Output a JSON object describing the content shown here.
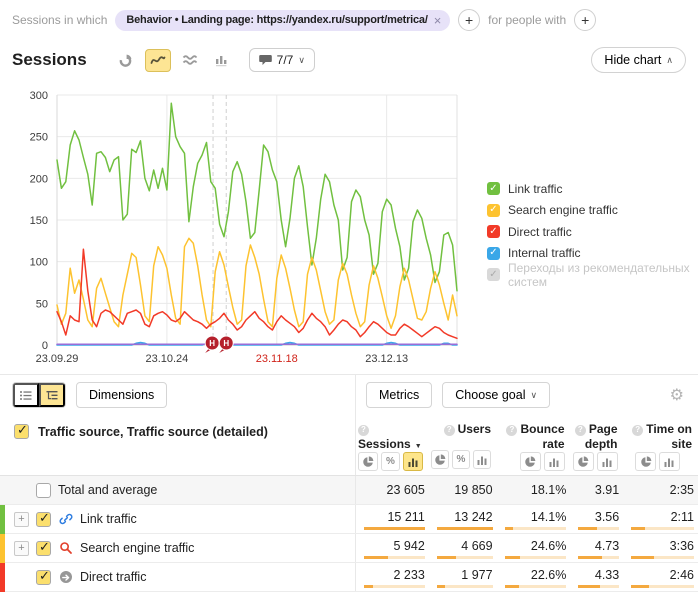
{
  "filter_bar": {
    "label": "Sessions in which",
    "chip_text": "Behavior • Landing page: https://yandex.ru/support/metrica/",
    "for_people_with": "for people with"
  },
  "chart_header": {
    "title": "Sessions",
    "comments_count": "7/7",
    "hide_chart_label": "Hide chart"
  },
  "legend": [
    {
      "label": "Link traffic",
      "color": "#71c040",
      "enabled": true
    },
    {
      "label": "Search engine traffic",
      "color": "#fdc330",
      "enabled": true
    },
    {
      "label": "Direct traffic",
      "color": "#f23a28",
      "enabled": true
    },
    {
      "label": "Internal traffic",
      "color": "#3aa7e8",
      "enabled": true
    },
    {
      "label": "Переходы из рекомендательных систем",
      "color": "#d9d9d9",
      "enabled": false
    }
  ],
  "chart_data": {
    "type": "line",
    "title": "Sessions",
    "ylim": [
      0,
      300
    ],
    "yticks": [
      0,
      50,
      100,
      150,
      200,
      250,
      300
    ],
    "days_total": 91,
    "x_ticks": [
      {
        "label": "23.09.29",
        "day": 0,
        "highlight": false
      },
      {
        "label": "23.10.24",
        "day": 25,
        "highlight": false
      },
      {
        "label": "23.11.18",
        "day": 50,
        "highlight": true
      },
      {
        "label": "23.12.13",
        "day": 75,
        "highlight": false
      }
    ],
    "dashed_marker_days": [
      35.5,
      38.5
    ],
    "annotations": [
      {
        "label": "H",
        "day": 35.3
      },
      {
        "label": "H",
        "day": 38.5
      }
    ],
    "series": [
      {
        "name": "Link traffic",
        "color": "#71c040",
        "values": [
          222,
          188,
          196,
          240,
          257,
          246,
          225,
          205,
          168,
          230,
          232,
          225,
          208,
          222,
          226,
          150,
          157,
          235,
          231,
          245,
          200,
          185,
          210,
          188,
          212,
          186,
          290,
          250,
          238,
          230,
          148,
          190,
          218,
          228,
          243,
          196,
          188,
          145,
          130,
          160,
          208,
          220,
          205,
          172,
          128,
          135,
          186,
          240,
          232,
          210,
          196,
          150,
          118,
          152,
          200,
          215,
          190,
          142,
          96,
          128,
          175,
          205,
          196,
          168,
          150,
          90,
          105,
          172,
          186,
          178,
          150,
          132,
          85,
          98,
          160,
          175,
          168,
          140,
          118,
          78,
          92,
          148,
          162,
          152,
          128,
          108,
          75,
          88,
          132,
          135,
          120,
          65
        ]
      },
      {
        "name": "Search engine traffic",
        "color": "#fdc330",
        "values": [
          48,
          25,
          38,
          92,
          62,
          78,
          55,
          30,
          22,
          68,
          80,
          62,
          45,
          28,
          22,
          60,
          85,
          110,
          105,
          72,
          35,
          28,
          95,
          118,
          108,
          92,
          60,
          32,
          25,
          118,
          128,
          122,
          95,
          60,
          30,
          22,
          88,
          112,
          96,
          70,
          45,
          25,
          30,
          95,
          120,
          105,
          85,
          55,
          28,
          22,
          80,
          108,
          92,
          68,
          42,
          22,
          28,
          85,
          105,
          90,
          65,
          40,
          25,
          30,
          78,
          98,
          85,
          60,
          38,
          22,
          28,
          72,
          95,
          80,
          58,
          35,
          20,
          35,
          70,
          92,
          78,
          55,
          32,
          30,
          40,
          68,
          88,
          72,
          50,
          30,
          60,
          35
        ]
      },
      {
        "name": "Direct traffic",
        "color": "#f23a28",
        "values": [
          40,
          28,
          12,
          35,
          30,
          28,
          115,
          65,
          30,
          22,
          38,
          42,
          40,
          35,
          30,
          25,
          38,
          40,
          42,
          38,
          25,
          22,
          35,
          38,
          40,
          36,
          30,
          28,
          32,
          40,
          35,
          30,
          28,
          25,
          20,
          25,
          28,
          32,
          38,
          30,
          25,
          18,
          22,
          30,
          35,
          40,
          32,
          28,
          22,
          18,
          28,
          35,
          30,
          26,
          22,
          15,
          20,
          30,
          38,
          32,
          28,
          22,
          12,
          18,
          25,
          30,
          28,
          22,
          18,
          10,
          15,
          22,
          28,
          25,
          20,
          15,
          12,
          12,
          20,
          25,
          22,
          18,
          14,
          10,
          14,
          18,
          22,
          20,
          15,
          12,
          10,
          8
        ]
      },
      {
        "name": "Internal traffic",
        "color": "#3aa7e8",
        "values": [
          0,
          0,
          0,
          0,
          0,
          0,
          0,
          0,
          0,
          0,
          0,
          0,
          0,
          0,
          0,
          0,
          0,
          0,
          2,
          3,
          2,
          0,
          0,
          0,
          0,
          0,
          0,
          0,
          0,
          0,
          0,
          0,
          0,
          0,
          2,
          3,
          2,
          0,
          0,
          0,
          0,
          0,
          0,
          0,
          0,
          0,
          0,
          0,
          0,
          0,
          0,
          0,
          2,
          3,
          2,
          0,
          0,
          0,
          0,
          0,
          0,
          0,
          0,
          0,
          0,
          0,
          0,
          0,
          0,
          0,
          0,
          0,
          0,
          0,
          0,
          2,
          3,
          2,
          0,
          0,
          0,
          0,
          0,
          0,
          0,
          0,
          0,
          0,
          2,
          2,
          0,
          0
        ]
      },
      {
        "name": "Переходы из рекомендательных систем",
        "color": "#9a6dd7",
        "values": [
          1,
          1
        ]
      }
    ]
  },
  "table": {
    "toolbar": {
      "dimensions_label": "Dimensions",
      "metrics_label": "Metrics",
      "choose_goal_label": "Choose goal"
    },
    "header": {
      "dimension_title": "Traffic source, Traffic source (detailed)",
      "columns": [
        {
          "label": "Sessions",
          "sorted": true,
          "toggles": [
            "pie",
            "percent",
            "bar"
          ],
          "active": "bar"
        },
        {
          "label": "Users",
          "sorted": false,
          "toggles": [
            "pie",
            "percent",
            "bar"
          ],
          "active": null
        },
        {
          "label": "Bounce rate",
          "sorted": false,
          "toggles": [
            "pie",
            "bar"
          ],
          "active": null
        },
        {
          "label": "Page depth",
          "sorted": false,
          "toggles": [
            "pie",
            "bar"
          ],
          "active": null
        },
        {
          "label": "Time on site",
          "sorted": false,
          "toggles": [
            "pie",
            "bar"
          ],
          "active": null
        }
      ]
    },
    "rows": [
      {
        "label": "Total and average",
        "type": "total",
        "checked": false,
        "expandable": false,
        "icon": null,
        "stripe": null,
        "values": [
          "23 605",
          "19 850",
          "18.1%",
          "3.91",
          "2:35"
        ],
        "bars": null
      },
      {
        "label": "Link traffic",
        "type": "data",
        "checked": true,
        "expandable": true,
        "icon": "link",
        "stripe": "#71c040",
        "values": [
          "15 211",
          "13 242",
          "14.1%",
          "3.56",
          "2:11"
        ],
        "bars": [
          100,
          100,
          14,
          45,
          22
        ]
      },
      {
        "label": "Search engine traffic",
        "type": "data",
        "checked": true,
        "expandable": true,
        "icon": "search",
        "stripe": "#fdc330",
        "values": [
          "5 942",
          "4 669",
          "24.6%",
          "4.73",
          "3:36"
        ],
        "bars": [
          39,
          35,
          25,
          59,
          36
        ]
      },
      {
        "label": "Direct traffic",
        "type": "data",
        "checked": true,
        "expandable": false,
        "icon": "direct",
        "stripe": "#f23a28",
        "values": [
          "2 233",
          "1 977",
          "22.6%",
          "4.33",
          "2:46"
        ],
        "bars": [
          15,
          15,
          23,
          54,
          28
        ]
      }
    ]
  }
}
